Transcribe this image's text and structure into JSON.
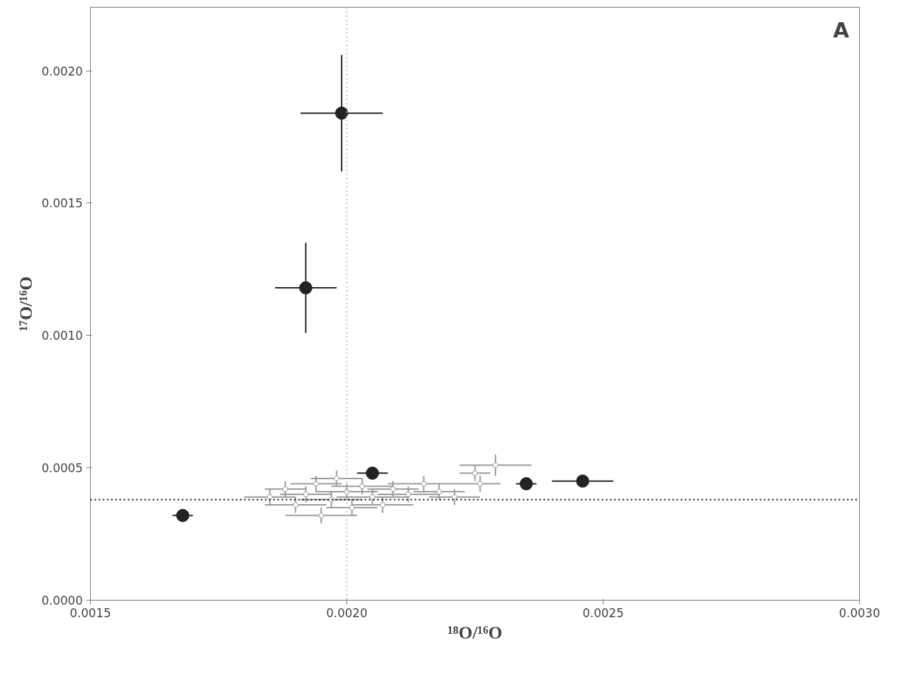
{
  "chart_data": {
    "type": "scatter",
    "xlabel": "¹⁸O/¹⁶O",
    "ylabel": "¹⁷O/¹⁶O",
    "annotations": [
      "A"
    ],
    "xlim": [
      0.0015,
      0.003
    ],
    "ylim": [
      0,
      0.00224
    ],
    "xticks": [
      {
        "value": 0.0015,
        "label": "0.0015"
      },
      {
        "value": 0.002,
        "label": "0.0020"
      },
      {
        "value": 0.0025,
        "label": "0.0025"
      },
      {
        "value": 0.003,
        "label": "0.0030"
      }
    ],
    "yticks": [
      {
        "value": 0,
        "label": "0.0000"
      },
      {
        "value": 0.0005,
        "label": "0.0005"
      },
      {
        "value": 0.001,
        "label": "0.0010"
      },
      {
        "value": 0.0015,
        "label": "0.0015"
      },
      {
        "value": 0.002,
        "label": "0.0020"
      }
    ],
    "grid": false,
    "marker": "circle",
    "ref_lines": [
      {
        "axis": "y",
        "value": 0.00038,
        "color": "#000000",
        "line_style": "dotted"
      },
      {
        "axis": "x",
        "value": 0.002,
        "color": "#bbbbbb",
        "line_style": "dotted"
      }
    ],
    "series": [
      {
        "color": "#999999",
        "x": [
          0.00185,
          0.00188,
          0.0019,
          0.00192,
          0.00194,
          0.00195,
          0.00197,
          0.00198,
          0.002,
          0.00201,
          0.00203,
          0.00205,
          0.00207,
          0.00209,
          0.00212,
          0.00215,
          0.00218,
          0.00221,
          0.00225,
          0.00229,
          0.00226
        ],
        "values": [
          0.00039,
          0.00042,
          0.00036,
          0.0004,
          0.00044,
          0.00032,
          0.00038,
          0.00046,
          0.00041,
          0.00035,
          0.00043,
          0.00039,
          0.00036,
          0.00042,
          0.0004,
          0.00044,
          0.00041,
          0.00039,
          0.00048,
          0.00051,
          0.00044
        ],
        "xerrors": [
          5e-05,
          4e-05,
          6e-05,
          5e-05,
          5e-05,
          7e-05,
          6e-05,
          5e-05,
          6e-05,
          5e-05,
          6e-05,
          7e-05,
          6e-05,
          5e-05,
          6e-05,
          7e-05,
          5e-05,
          5e-05,
          3e-05,
          7e-05,
          4e-05
        ],
        "errors": [
          3e-05,
          3e-05,
          3e-05,
          3e-05,
          3e-05,
          3e-05,
          3e-05,
          3e-05,
          3e-05,
          3e-05,
          3e-05,
          3e-05,
          3e-05,
          3e-05,
          3e-05,
          3e-05,
          3e-05,
          3e-05,
          3e-05,
          4e-05,
          3e-05
        ]
      },
      {
        "color": "#222222",
        "x": [
          0.00199,
          0.00192,
          0.00205,
          0.00235,
          0.00246,
          0.00168
        ],
        "values": [
          0.00184,
          0.00118,
          0.00048,
          0.00044,
          0.00045,
          0.00032
        ],
        "xerrors": [
          8e-05,
          6e-05,
          3e-05,
          2e-05,
          6e-05,
          2e-05
        ],
        "errors": [
          0.00022,
          0.00017,
          2e-05,
          1e-05,
          1e-05,
          1e-05
        ]
      }
    ]
  }
}
